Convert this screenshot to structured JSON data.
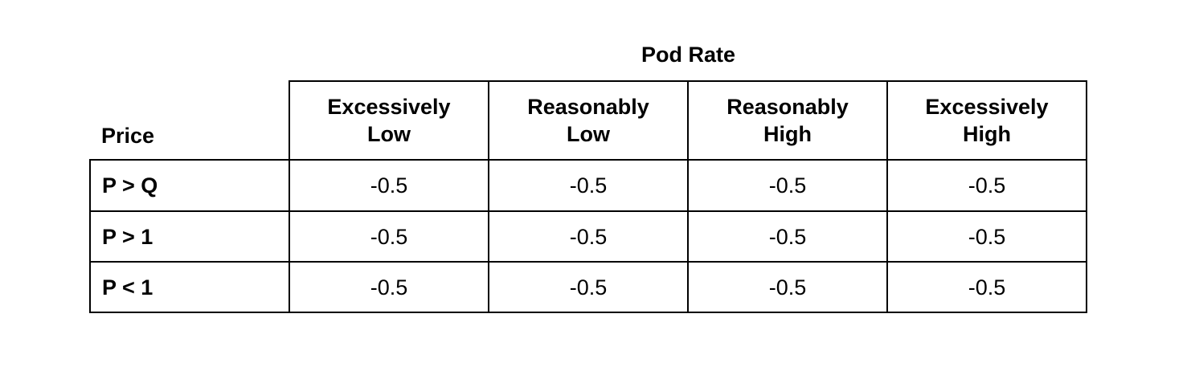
{
  "table": {
    "group_header": "Pod Rate",
    "row_header_label": "Price",
    "columns": [
      "Excessively\nLow",
      "Reasonably\nLow",
      "Reasonably\nHigh",
      "Excessively\nHigh"
    ],
    "rows": [
      {
        "label": "P > Q",
        "values": [
          "-0.5",
          "-0.5",
          "-0.5",
          "-0.5"
        ]
      },
      {
        "label": "P > 1",
        "values": [
          "-0.5",
          "-0.5",
          "-0.5",
          "-0.5"
        ]
      },
      {
        "label": "P < 1",
        "values": [
          "-0.5",
          "-0.5",
          "-0.5",
          "-0.5"
        ]
      }
    ]
  }
}
